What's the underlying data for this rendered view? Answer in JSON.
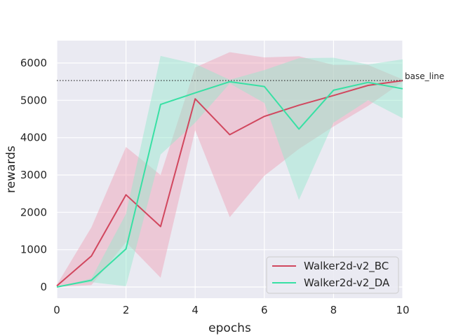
{
  "chart_data": {
    "type": "line",
    "title": "",
    "xlabel": "epochs",
    "ylabel": "rewards",
    "xlim": [
      0,
      10
    ],
    "ylim": [
      -300,
      6600
    ],
    "xticks": [
      0,
      2,
      4,
      6,
      8,
      10
    ],
    "yticks": [
      0,
      1000,
      2000,
      3000,
      4000,
      5000,
      6000
    ],
    "grid": true,
    "background": "#eaeaf2",
    "legend_position": "lower-right",
    "x": [
      0,
      1,
      2,
      3,
      4,
      5,
      6,
      7,
      8,
      9,
      10
    ],
    "series": [
      {
        "name": "Walker2d-v2_BC",
        "color": "#d1475e",
        "band_color": "#f0a0b4",
        "values": [
          30,
          830,
          2470,
          1620,
          5040,
          4080,
          4570,
          4870,
          5130,
          5400,
          5530
        ],
        "lower": [
          0,
          50,
          1200,
          250,
          4200,
          1870,
          2980,
          3700,
          4300,
          4850,
          5500
        ],
        "upper": [
          60,
          1600,
          3750,
          3000,
          5880,
          6290,
          6150,
          6180,
          5950,
          5950,
          5560
        ]
      },
      {
        "name": "Walker2d-v2_DA",
        "color": "#38e0a4",
        "band_color": "#95e8cb",
        "values": [
          0,
          180,
          1020,
          4890,
          5200,
          5500,
          5370,
          4230,
          5270,
          5480,
          5310
        ],
        "lower": [
          0,
          130,
          20,
          3550,
          4400,
          5450,
          4930,
          2330,
          4400,
          5000,
          4520
        ],
        "upper": [
          0,
          230,
          1960,
          6190,
          5980,
          5550,
          5810,
          6130,
          6140,
          5960,
          6100
        ]
      }
    ],
    "annotations": [
      {
        "text": "base_line",
        "y": 5530,
        "style": "dotted",
        "color": "#262626"
      }
    ]
  }
}
